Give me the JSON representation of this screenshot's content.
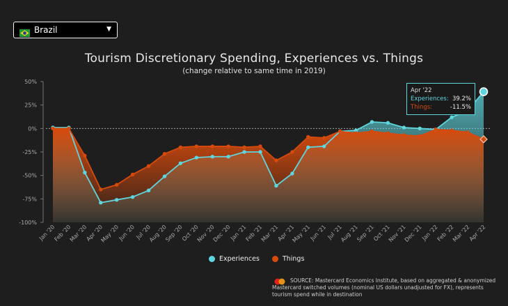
{
  "dropdown": {
    "selected": "Brazil",
    "flag_icon": "brazil-flag-icon"
  },
  "title": "Tourism Discretionary Spending, Experiences vs. Things",
  "subtitle": "(change relative to same time in 2019)",
  "tooltip": {
    "date": "Apr '22",
    "experiences_label": "Experiences:",
    "experiences_value": "39.2%",
    "things_label": "Things:",
    "things_value": "-11.5%"
  },
  "legend": {
    "experiences": "Experiences",
    "things": "Things"
  },
  "source": "SOURCE: Mastercard Economics Institute, based on aggregated & anonymized Mastercard switched volumes (nominal US dollars unadjusted for FX), represents tourism spend while in destination",
  "colors": {
    "experiences": "#5fd6de",
    "things": "#d64a0c",
    "background": "#1e1e1e"
  },
  "chart_data": {
    "type": "line",
    "title": "Tourism Discretionary Spending, Experiences vs. Things",
    "subtitle": "(change relative to same time in 2019)",
    "ylim": [
      -100,
      50
    ],
    "yticks": [
      "50%",
      "25%",
      "0%",
      "-25%",
      "-50%",
      "-75%",
      "-100%"
    ],
    "ytick_values": [
      50,
      25,
      0,
      -25,
      -50,
      -75,
      -100
    ],
    "categories": [
      "Jan '20",
      "Feb '20",
      "Mar '20",
      "Apr '20",
      "May '20",
      "Jun '20",
      "Jul '20",
      "Aug '20",
      "Sep '20",
      "Oct '20",
      "Nov '20",
      "Dec '20",
      "Jan '21",
      "Feb '21",
      "Mar '21",
      "Apr '21",
      "May '21",
      "Jun '21",
      "Jul '21",
      "Aug '21",
      "Sep '21",
      "Oct '21",
      "Nov '21",
      "Dec '21",
      "Jan '22",
      "Feb '22",
      "Mar '22",
      "Apr '22"
    ],
    "series": [
      {
        "name": "Experiences",
        "values": [
          1,
          1,
          -47,
          -79,
          -76,
          -73,
          -66,
          -51,
          -37,
          -31,
          -30,
          -30,
          -25,
          -25,
          -61,
          -48,
          -20,
          -19,
          -3,
          -2,
          7,
          6,
          1,
          0,
          -1,
          12,
          19,
          39.2
        ]
      },
      {
        "name": "Things",
        "values": [
          0,
          0,
          -29,
          -65,
          -60,
          -49,
          -40,
          -27,
          -20,
          -19,
          -19,
          -19,
          -20,
          -19,
          -34,
          -25,
          -9,
          -10,
          -3,
          -5,
          -3,
          -5,
          -7,
          -8,
          -1,
          -2,
          -4,
          -11.5
        ]
      }
    ],
    "grid": false
  }
}
